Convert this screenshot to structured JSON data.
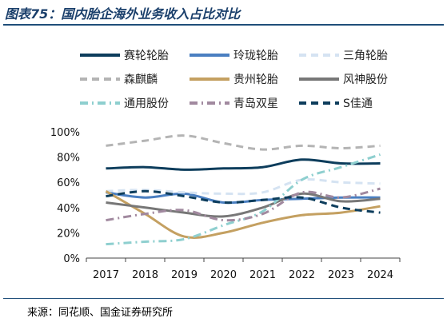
{
  "figure": {
    "title": "图表75：国内胎企海外业务收入占比对比",
    "source": "来源：同花顺、国金证券研究所"
  },
  "chart_data": {
    "type": "line",
    "title": "",
    "xlabel": "",
    "ylabel": "",
    "x": [
      "2017",
      "2018",
      "2019",
      "2020",
      "2021",
      "2022",
      "2023",
      "2024"
    ],
    "ylim": [
      0,
      100
    ],
    "yticks": [
      0,
      20,
      40,
      60,
      80,
      100
    ],
    "ytick_labels": [
      "0%",
      "20%",
      "40%",
      "60%",
      "80%",
      "100%"
    ],
    "y_unit": "%",
    "grid": false,
    "legend_position": "top",
    "series": [
      {
        "name": "赛轮轮胎",
        "color": "#0d3d5c",
        "style": "solid",
        "values": [
          71,
          72,
          70,
          71,
          72,
          78,
          75,
          75
        ]
      },
      {
        "name": "玲珑轮胎",
        "color": "#4a7fc1",
        "style": "solid",
        "values": [
          52,
          48,
          51,
          44,
          46,
          47,
          48,
          48
        ]
      },
      {
        "name": "三角轮胎",
        "color": "#d5e3f2",
        "style": "dash",
        "values": [
          53,
          54,
          52,
          51,
          52,
          62,
          60,
          59
        ]
      },
      {
        "name": "森麒麟",
        "color": "#b4b4b4",
        "style": "dash",
        "values": [
          89,
          93,
          97,
          91,
          86,
          89,
          87,
          89
        ]
      },
      {
        "name": "贵州轮胎",
        "color": "#c4a061",
        "style": "solid",
        "values": [
          53,
          35,
          17,
          20,
          28,
          34,
          36,
          41
        ]
      },
      {
        "name": "风神股份",
        "color": "#777777",
        "style": "solid",
        "values": [
          44,
          40,
          36,
          33,
          40,
          51,
          45,
          47
        ]
      },
      {
        "name": "通用股份",
        "color": "#8ecfcf",
        "style": "dashdot",
        "values": [
          11,
          13,
          15,
          26,
          37,
          62,
          72,
          82
        ]
      },
      {
        "name": "青岛双星",
        "color": "#a1899f",
        "style": "dashdot",
        "values": [
          30,
          35,
          38,
          30,
          35,
          52,
          48,
          55
        ]
      },
      {
        "name": "S佳通",
        "color": "#0d3d5c",
        "style": "dash",
        "values": [
          49,
          53,
          49,
          44,
          46,
          48,
          40,
          36
        ]
      }
    ]
  }
}
